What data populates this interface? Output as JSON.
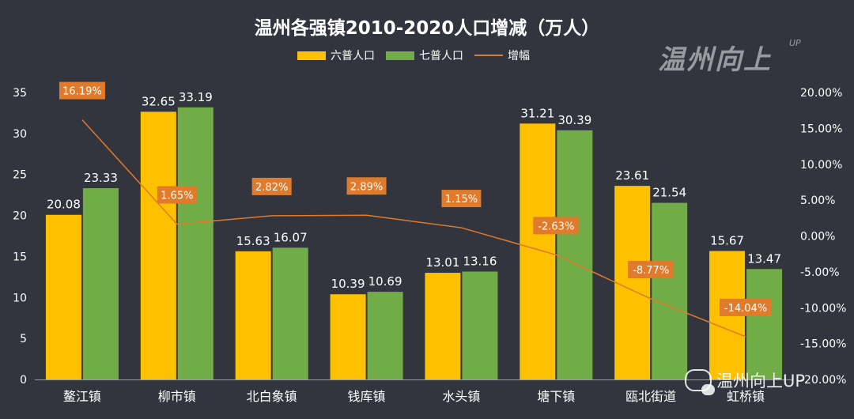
{
  "chart_data": {
    "type": "bar",
    "title": "温州各强镇2010-2020人口增减（万人）",
    "categories": [
      "鳌江镇",
      "柳市镇",
      "北白象镇",
      "钱库镇",
      "水头镇",
      "塘下镇",
      "瓯北街道",
      "虹桥镇"
    ],
    "series": [
      {
        "name": "六普人口",
        "type": "bar",
        "color": "#ffc000",
        "values": [
          20.08,
          32.65,
          15.63,
          10.39,
          13.01,
          31.21,
          23.61,
          15.67
        ],
        "labels": [
          "20.08",
          "32.65",
          "15.63",
          "10.39",
          "13.01",
          "31.21",
          "23.61",
          "15.67"
        ]
      },
      {
        "name": "七普人口",
        "type": "bar",
        "color": "#70ad47",
        "values": [
          23.33,
          33.19,
          16.07,
          10.69,
          13.16,
          30.39,
          21.54,
          13.47
        ],
        "labels": [
          "23.33",
          "33.19",
          "16.07",
          "10.69",
          "13.16",
          "30.39",
          "21.54",
          "13.47"
        ]
      },
      {
        "name": "增幅",
        "type": "line",
        "axis": "right",
        "color": "#e07b2c",
        "values": [
          16.19,
          1.65,
          2.82,
          2.89,
          1.15,
          -2.63,
          -8.77,
          -14.04
        ],
        "labels": [
          "16.19%",
          "1.65%",
          "2.82%",
          "2.89%",
          "1.15%",
          "-2.63%",
          "-8.77%",
          "-14.04%"
        ]
      }
    ],
    "ylim": [
      0,
      35
    ],
    "y_ticks": [
      "0",
      "5",
      "10",
      "15",
      "20",
      "25",
      "30",
      "35"
    ],
    "y2lim": [
      -20,
      20
    ],
    "y2_ticks": [
      "-20.00%",
      "-15.00%",
      "-10.00%",
      "-5.00%",
      "0.00%",
      "5.00%",
      "10.00%",
      "15.00%",
      "20.00%"
    ],
    "grid": false,
    "legend_position": "top-center"
  },
  "logo": {
    "text": "温州向上",
    "suffix": "UP"
  },
  "watermark": {
    "text": "温州向上UP"
  },
  "colors": {
    "background": "#33353e",
    "label_box": "#e07b2c"
  }
}
